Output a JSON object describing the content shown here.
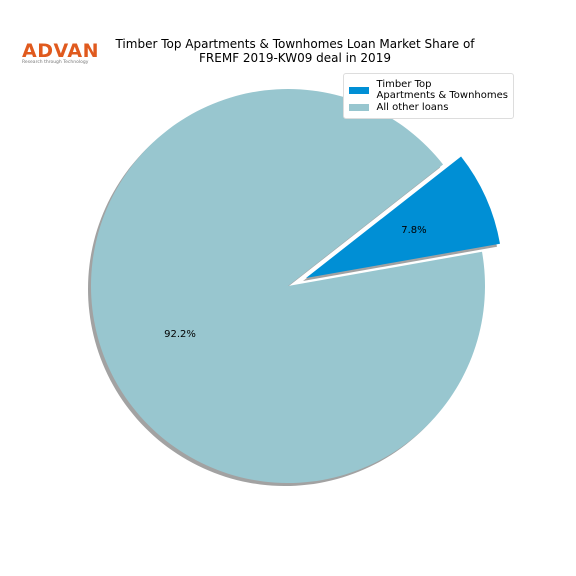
{
  "logo": {
    "name": "ADVAN",
    "tagline": "Research through Technology"
  },
  "chart_data": {
    "type": "pie",
    "title": "Timber Top Apartments & Townhomes Loan Market Share of\nFREMF 2019-KW09 deal in 2019",
    "categories": [
      "Timber Top\nApartments & Townhomes",
      "All other loans"
    ],
    "values": [
      7.8,
      92.2
    ],
    "value_labels": [
      "7.8%",
      "92.2%"
    ],
    "colors": [
      "#008fd5",
      "#98c6cf"
    ],
    "legend": "upper right",
    "shadow": true
  }
}
